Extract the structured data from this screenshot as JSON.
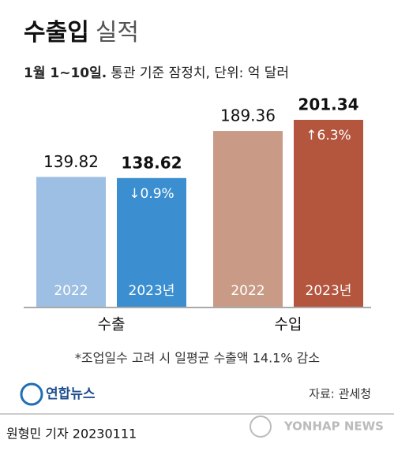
{
  "chart_data": {
    "type": "bar",
    "title_bold": "수출입",
    "title_light": "실적",
    "subtitle_bold": "1월 1~10일.",
    "subtitle": "통관 기준 잠정치, 단위: 억 달러",
    "categories": [
      "수출",
      "수입"
    ],
    "series": [
      {
        "name": "2022",
        "colors": [
          "#9dbfe3",
          "#c99b86"
        ],
        "values": [
          139.82,
          189.36
        ]
      },
      {
        "name": "2023년",
        "colors": [
          "#3b8fd0",
          "#b4553e"
        ],
        "values": [
          138.62,
          201.34
        ],
        "change_labels": [
          "↓0.9%",
          "↑6.3%"
        ]
      }
    ],
    "ylim": [
      0,
      220
    ],
    "footnote": "*조업일수 고려 시 일평균 수출액 14.1% 감소",
    "source": "자료: 관세청",
    "logo": "연합뉴스",
    "credit": "원형민 기자  20230111",
    "watermark": "YONHAP NEWS"
  }
}
